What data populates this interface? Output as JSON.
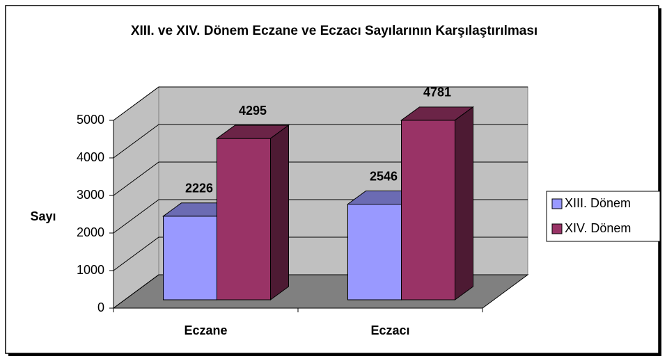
{
  "chart_data": {
    "type": "bar",
    "title": "XIII. ve XIV. Dönem Eczane ve Eczacı Sayılarının Karşılaştırılması",
    "y_label": "Sayı",
    "categories": [
      "Eczane",
      "Eczacı"
    ],
    "series": [
      {
        "name": "XIII. Dönem",
        "color": "#9999ff",
        "values": [
          2226,
          2546
        ]
      },
      {
        "name": "XIV. Dönem",
        "color": "#993366",
        "values": [
          4295,
          4781
        ]
      }
    ],
    "ylim": [
      0,
      5000
    ],
    "yticks": [
      0,
      1000,
      2000,
      3000,
      4000,
      5000
    ],
    "grid": true,
    "legend": "right"
  }
}
